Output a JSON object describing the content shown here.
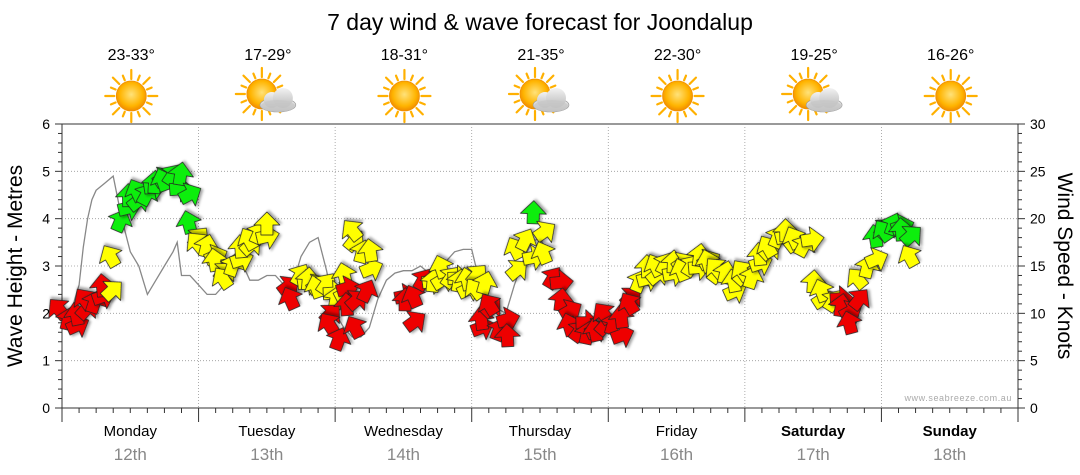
{
  "chart_data": {
    "type": "line",
    "title": "7 day wind & wave forecast for Joondalup",
    "ylabel": "Wave Height - Metres",
    "y2label": "Wind Speed - Knots",
    "ylim": [
      0,
      6
    ],
    "y2lim": [
      0,
      30
    ],
    "yticks": [
      "0",
      "1",
      "2",
      "3",
      "4",
      "5",
      "6"
    ],
    "y2ticks": [
      "0",
      "5",
      "10",
      "15",
      "20",
      "25",
      "30"
    ],
    "watermark": "www.seabreeze.com.au",
    "grid": true,
    "days": [
      {
        "name": "Monday",
        "date": "12th",
        "temp": "23-33°",
        "icon": "sun-icon",
        "bold": false
      },
      {
        "name": "Tuesday",
        "date": "13th",
        "temp": "17-29°",
        "icon": "sun-cloud-icon",
        "bold": false
      },
      {
        "name": "Wednesday",
        "date": "14th",
        "temp": "18-31°",
        "icon": "sun-icon",
        "bold": false
      },
      {
        "name": "Thursday",
        "date": "15th",
        "temp": "21-35°",
        "icon": "sun-cloud-icon",
        "bold": false
      },
      {
        "name": "Friday",
        "date": "16th",
        "temp": "22-30°",
        "icon": "sun-icon",
        "bold": false
      },
      {
        "name": "Saturday",
        "date": "17th",
        "temp": "19-25°",
        "icon": "sun-cloud-icon",
        "bold": true
      },
      {
        "name": "Sunday",
        "date": "18th",
        "temp": "16-26°",
        "icon": "sun-icon",
        "bold": true
      }
    ],
    "colors": {
      "low": "#ee0000",
      "mid": "#ffff00",
      "high": "#11ee11",
      "swell": "#888888",
      "grid": "#999999",
      "axis": "#333333"
    },
    "wave_height": [
      [
        0.0,
        2.0
      ],
      [
        0.25,
        1.8
      ],
      [
        0.5,
        1.9
      ],
      [
        0.75,
        2.3
      ],
      [
        1.0,
        2.6
      ],
      [
        1.25,
        3.4
      ],
      [
        1.5,
        4.0
      ],
      [
        1.75,
        4.4
      ],
      [
        2.0,
        4.6
      ],
      [
        2.5,
        4.75
      ],
      [
        3.0,
        4.9
      ],
      [
        3.5,
        4.0
      ],
      [
        4.0,
        3.3
      ],
      [
        4.5,
        3.0
      ],
      [
        5.0,
        2.4
      ],
      [
        5.5,
        2.7
      ],
      [
        6.0,
        3.0
      ],
      [
        6.5,
        3.3
      ],
      [
        6.75,
        3.5
      ],
      [
        7.0,
        2.8
      ],
      [
        7.5,
        2.8
      ],
      [
        8.0,
        2.6
      ],
      [
        8.5,
        2.4
      ],
      [
        9.0,
        2.4
      ],
      [
        9.5,
        2.6
      ],
      [
        10.0,
        3.2
      ],
      [
        10.25,
        3.3
      ],
      [
        10.5,
        3.1
      ],
      [
        11.0,
        2.7
      ],
      [
        11.5,
        2.7
      ],
      [
        12.0,
        2.8
      ],
      [
        12.5,
        2.8
      ],
      [
        13.0,
        2.6
      ],
      [
        13.5,
        2.6
      ],
      [
        14.0,
        3.2
      ],
      [
        14.5,
        3.5
      ],
      [
        15.0,
        3.6
      ],
      [
        15.5,
        2.9
      ],
      [
        16.0,
        2.0
      ],
      [
        16.5,
        1.7
      ],
      [
        17.0,
        1.5
      ],
      [
        17.5,
        1.5
      ],
      [
        18.0,
        1.7
      ],
      [
        18.5,
        2.3
      ],
      [
        19.0,
        2.7
      ],
      [
        19.5,
        2.85
      ],
      [
        20.0,
        2.9
      ],
      [
        20.5,
        2.9
      ],
      [
        21.0,
        3.0
      ],
      [
        21.5,
        2.85
      ],
      [
        22.0,
        2.9
      ],
      [
        22.5,
        3.1
      ],
      [
        23.0,
        3.3
      ],
      [
        23.5,
        3.35
      ],
      [
        24.0,
        3.35
      ],
      [
        24.5,
        2.6
      ],
      [
        25.0,
        2.3
      ],
      [
        25.5,
        2.1
      ],
      [
        26.0,
        2.0
      ],
      [
        26.5,
        2.6
      ],
      [
        27.0,
        3.1
      ],
      [
        27.5,
        3.5
      ],
      [
        28.0,
        3.6
      ],
      [
        28.5,
        3.2
      ]
    ],
    "wind": [
      [
        0.0,
        10.0,
        "low"
      ],
      [
        0.3,
        8.8,
        "low"
      ],
      [
        0.6,
        8.5,
        "low"
      ],
      [
        0.9,
        9.3,
        "low"
      ],
      [
        1.2,
        10.0,
        "low"
      ],
      [
        1.5,
        11.0,
        "low"
      ],
      [
        1.8,
        10.6,
        "low"
      ],
      [
        2.1,
        11.6,
        "low"
      ],
      [
        2.4,
        12.3,
        "low"
      ],
      [
        2.7,
        12.0,
        "mid"
      ],
      [
        3.0,
        15.5,
        "mid"
      ],
      [
        3.3,
        19.2,
        "high"
      ],
      [
        3.6,
        21.0,
        "high"
      ],
      [
        3.9,
        21.8,
        "high"
      ],
      [
        4.2,
        21.5,
        "high"
      ],
      [
        4.5,
        22.4,
        "high"
      ],
      [
        4.8,
        22.0,
        "high"
      ],
      [
        5.1,
        23.3,
        "high"
      ],
      [
        5.4,
        23.2,
        "high"
      ],
      [
        5.7,
        24.0,
        "high"
      ],
      [
        6.0,
        23.5,
        "high"
      ],
      [
        6.3,
        24.1,
        "high"
      ],
      [
        6.6,
        23.1,
        "high"
      ],
      [
        6.9,
        24.1,
        "high"
      ],
      [
        7.2,
        22.3,
        "high"
      ],
      [
        7.5,
        19.0,
        "high"
      ],
      [
        7.8,
        17.5,
        "mid"
      ],
      [
        8.1,
        17.0,
        "mid"
      ],
      [
        8.4,
        16.5,
        "mid"
      ],
      [
        8.7,
        15.8,
        "mid"
      ],
      [
        9.0,
        15.0,
        "mid"
      ],
      [
        9.3,
        13.9,
        "mid"
      ],
      [
        9.6,
        13.2,
        "mid"
      ],
      [
        9.9,
        14.5,
        "mid"
      ],
      [
        10.2,
        15.5,
        "mid"
      ],
      [
        10.5,
        16.4,
        "mid"
      ],
      [
        10.8,
        16.8,
        "mid"
      ],
      [
        11.1,
        17.3,
        "mid"
      ],
      [
        11.4,
        17.9,
        "mid"
      ],
      [
        11.7,
        18.0,
        "mid"
      ],
      [
        12.0,
        18.8,
        "mid"
      ],
      [
        13.0,
        12.5,
        "low"
      ],
      [
        13.5,
        11.0,
        "low"
      ],
      [
        13.8,
        13.5,
        "mid"
      ],
      [
        14.1,
        13.2,
        "mid"
      ],
      [
        14.4,
        13.0,
        "mid"
      ],
      [
        14.7,
        12.7,
        "mid"
      ],
      [
        15.0,
        12.2,
        "mid"
      ],
      [
        15.3,
        12.6,
        "mid"
      ],
      [
        15.6,
        12.1,
        "mid"
      ],
      [
        16.0,
        11.0,
        "mid"
      ],
      [
        16.3,
        11.8,
        "mid"
      ],
      [
        16.6,
        13.5,
        "mid"
      ],
      [
        16.9,
        17.2,
        "mid"
      ],
      [
        17.2,
        18.3,
        "mid"
      ],
      [
        17.5,
        15.9,
        "mid"
      ],
      [
        17.8,
        14.5,
        "mid"
      ],
      [
        18.1,
        16.0,
        "mid"
      ],
      [
        15.5,
        9.5,
        "low"
      ],
      [
        15.8,
        8.4,
        "low"
      ],
      [
        16.1,
        6.7,
        "low"
      ],
      [
        16.4,
        12.5,
        "low"
      ],
      [
        16.7,
        10.3,
        "low"
      ],
      [
        17.0,
        11.0,
        "low"
      ],
      [
        17.3,
        8.0,
        "low"
      ],
      [
        17.7,
        11.8,
        "low"
      ],
      [
        19.8,
        11.7,
        "low"
      ],
      [
        20.1,
        10.8,
        "low"
      ],
      [
        20.4,
        8.8,
        "low"
      ],
      [
        20.7,
        11.2,
        "low"
      ],
      [
        21.0,
        13.0,
        "low"
      ],
      [
        21.4,
        13.3,
        "mid"
      ],
      [
        21.7,
        12.8,
        "mid"
      ],
      [
        22.0,
        13.2,
        "mid"
      ],
      [
        22.3,
        14.3,
        "mid"
      ],
      [
        22.6,
        13.3,
        "mid"
      ],
      [
        22.9,
        13.7,
        "mid"
      ],
      [
        23.2,
        12.8,
        "mid"
      ],
      [
        23.5,
        12.3,
        "mid"
      ],
      [
        23.8,
        13.0,
        "mid"
      ],
      [
        24.1,
        13.6,
        "mid"
      ],
      [
        24.4,
        12.1,
        "mid"
      ],
      [
        24.7,
        12.6,
        "mid"
      ],
      [
        24.3,
        8.3,
        "low"
      ],
      [
        24.6,
        8.8,
        "low"
      ],
      [
        24.9,
        10.2,
        "low"
      ],
      [
        25.2,
        10.4,
        "low"
      ],
      [
        25.5,
        7.7,
        "low"
      ],
      [
        25.8,
        9.2,
        "low"
      ],
      [
        26.1,
        7.0,
        "low"
      ],
      [
        26.4,
        14.2,
        "mid"
      ],
      [
        26.7,
        16.3,
        "mid"
      ],
      [
        27.0,
        17.2,
        "mid"
      ],
      [
        27.3,
        15.8,
        "mid"
      ],
      [
        27.6,
        20.0,
        "high"
      ],
      [
        28.0,
        18.3,
        "mid"
      ],
      [
        28.3,
        15.8,
        "mid"
      ],
      [
        28.6,
        13.2,
        "low"
      ],
      [
        28.9,
        13.2,
        "low"
      ],
      [
        29.2,
        10.8,
        "low"
      ],
      [
        29.5,
        10.0,
        "low"
      ],
      [
        29.8,
        8.2,
        "low"
      ],
      [
        30.1,
        7.6,
        "low"
      ],
      [
        30.4,
        9.0,
        "low"
      ],
      [
        30.7,
        7.3,
        "low"
      ],
      [
        31.0,
        8.0,
        "low"
      ],
      [
        31.3,
        7.6,
        "low"
      ],
      [
        31.6,
        8.3,
        "low"
      ],
      [
        31.9,
        9.5,
        "low"
      ],
      [
        32.2,
        8.3,
        "low"
      ],
      [
        32.5,
        7.5,
        "low"
      ],
      [
        32.8,
        9.0,
        "low"
      ],
      [
        33.1,
        11.3,
        "low"
      ],
      [
        33.4,
        10.5,
        "low"
      ],
      [
        33.7,
        12.8,
        "mid"
      ],
      [
        34.0,
        13.5,
        "mid"
      ],
      [
        34.3,
        14.3,
        "mid"
      ],
      [
        34.6,
        13.7,
        "mid"
      ],
      [
        34.9,
        14.5,
        "mid"
      ],
      [
        35.2,
        14.7,
        "mid"
      ],
      [
        35.5,
        14.1,
        "mid"
      ],
      [
        35.8,
        14.8,
        "mid"
      ],
      [
        36.1,
        15.0,
        "mid"
      ],
      [
        36.4,
        14.0,
        "mid"
      ],
      [
        36.7,
        14.5,
        "mid"
      ],
      [
        37.0,
        14.8,
        "mid"
      ],
      [
        37.3,
        15.5,
        "mid"
      ],
      [
        37.6,
        15.3,
        "mid"
      ],
      [
        37.9,
        14.9,
        "mid"
      ],
      [
        38.2,
        13.8,
        "mid"
      ],
      [
        38.5,
        14.3,
        "mid"
      ],
      [
        38.8,
        13.7,
        "mid"
      ],
      [
        39.1,
        12.1,
        "mid"
      ],
      [
        39.4,
        12.8,
        "mid"
      ],
      [
        39.7,
        13.6,
        "mid"
      ],
      [
        40.0,
        14.0,
        "mid"
      ],
      [
        40.3,
        13.2,
        "mid"
      ],
      [
        40.6,
        15.1,
        "mid"
      ],
      [
        40.9,
        15.6,
        "mid"
      ],
      [
        41.2,
        16.3,
        "mid"
      ],
      [
        41.5,
        16.5,
        "mid"
      ],
      [
        41.8,
        17.5,
        "mid"
      ],
      [
        42.1,
        18.0,
        "mid"
      ],
      [
        42.4,
        18.1,
        "mid"
      ],
      [
        42.7,
        17.1,
        "mid"
      ],
      [
        43.0,
        17.4,
        "mid"
      ],
      [
        43.3,
        16.6,
        "mid"
      ],
      [
        43.6,
        17.7,
        "mid"
      ],
      [
        44.0,
        12.7,
        "mid"
      ],
      [
        44.3,
        11.2,
        "mid"
      ],
      [
        44.6,
        11.8,
        "mid"
      ],
      [
        45.0,
        10.8,
        "mid"
      ],
      [
        45.3,
        11.5,
        "low"
      ],
      [
        45.6,
        10.2,
        "low"
      ],
      [
        45.9,
        9.9,
        "low"
      ],
      [
        46.2,
        8.4,
        "low"
      ],
      [
        46.5,
        11.0,
        "low"
      ],
      [
        46.8,
        13.2,
        "mid"
      ],
      [
        47.1,
        14.3,
        "mid"
      ],
      [
        47.4,
        15.5,
        "mid"
      ],
      [
        47.7,
        17.5,
        "high"
      ],
      [
        48.0,
        18.5,
        "high"
      ],
      [
        48.3,
        18.2,
        "high"
      ],
      [
        48.6,
        18.8,
        "high"
      ],
      [
        48.9,
        19.0,
        "high"
      ],
      [
        49.2,
        18.2,
        "high"
      ],
      [
        49.5,
        17.8,
        "high"
      ],
      [
        49.8,
        15.5,
        "mid"
      ]
    ]
  }
}
